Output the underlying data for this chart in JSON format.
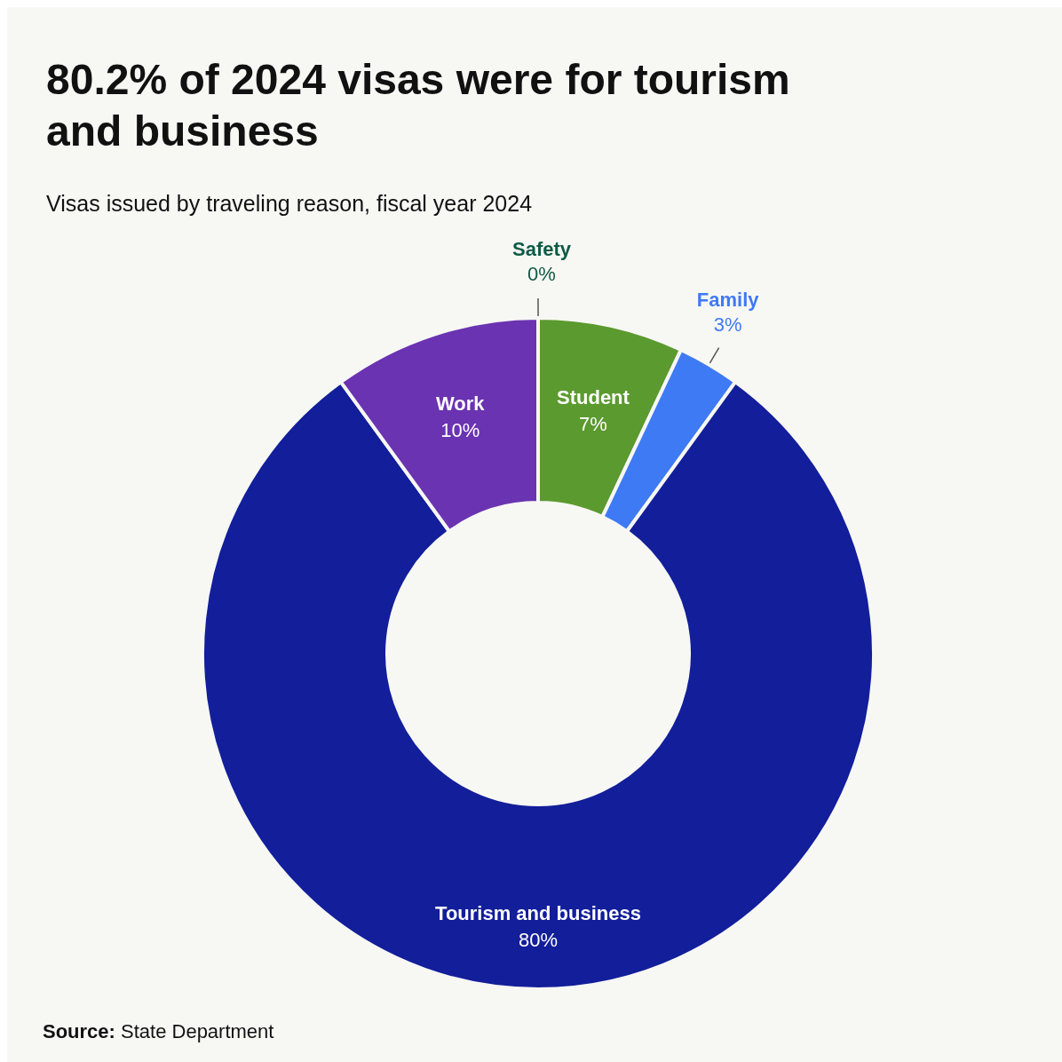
{
  "chart_data": {
    "type": "donut",
    "title": "80.2% of 2024 visas were for tourism and business",
    "subtitle": "Visas issued by traveling reason, fiscal year 2024",
    "categories": [
      "Safety",
      "Student",
      "Family",
      "Tourism and business",
      "Work"
    ],
    "values": [
      0,
      7,
      3,
      80,
      10
    ],
    "value_labels": [
      "0%",
      "7%",
      "3%",
      "80%",
      "10%"
    ],
    "colors": [
      "#0d5a45",
      "#5b9a2f",
      "#3f7af5",
      "#121e9a",
      "#6a33b1"
    ],
    "annotations": [
      "Source: State Department"
    ]
  }
}
